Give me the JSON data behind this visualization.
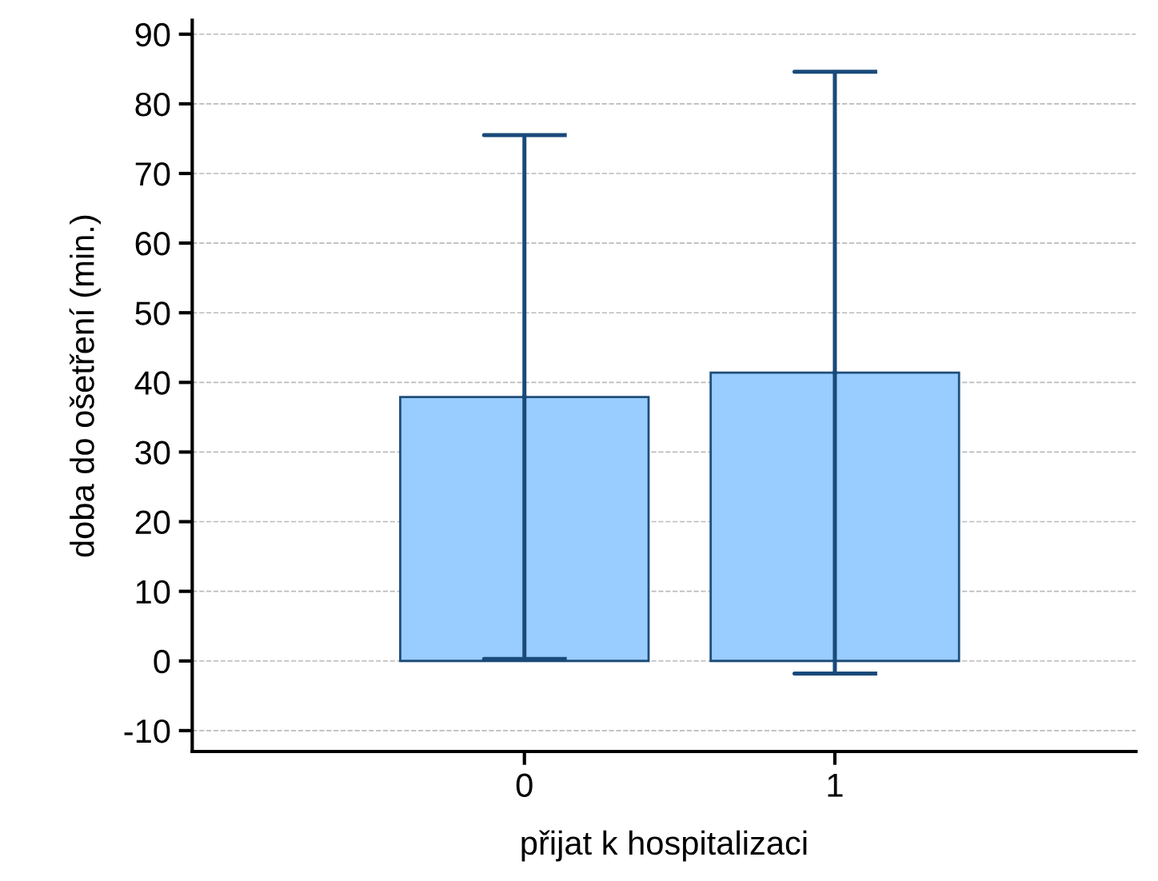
{
  "chart_data": {
    "type": "bar",
    "xlabel": "přijat k hospitalizaci",
    "ylabel": "doba do ošetření (min.)",
    "categories": [
      "0",
      "1"
    ],
    "values": [
      37.9,
      41.4
    ],
    "color": "#99ccff",
    "errors": [
      37.6,
      43.2
    ],
    "ylim": [
      -13,
      92
    ],
    "yticks": [
      {
        "value": -10,
        "label": "-10"
      },
      0,
      10,
      20,
      30,
      40,
      50,
      60,
      70,
      80,
      90
    ],
    "grid": "y"
  }
}
